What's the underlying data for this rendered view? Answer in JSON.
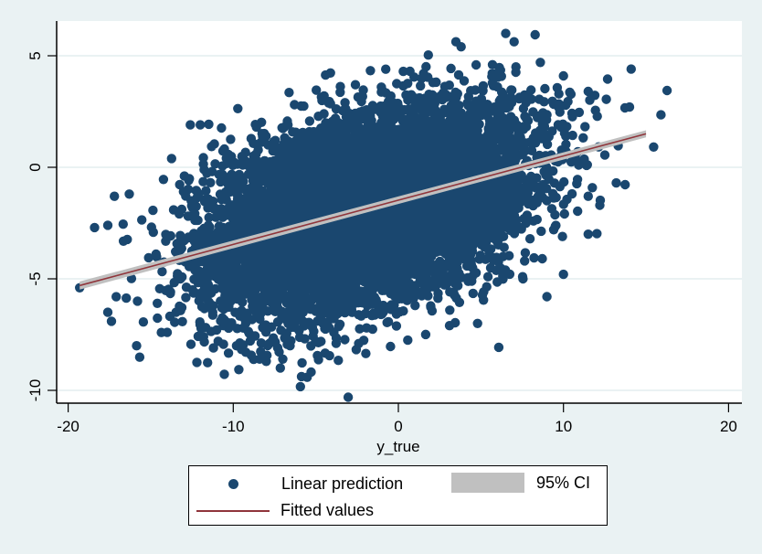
{
  "chart_data": {
    "type": "scatter",
    "title": "",
    "xlabel": "y_true",
    "ylabel": "",
    "xlim": [
      -20.8,
      20.8
    ],
    "ylim": [
      -10.6,
      6.5
    ],
    "x_ticks": [
      -20,
      -10,
      0,
      10,
      20
    ],
    "x_tick_labels": [
      "-20",
      "-10",
      "0",
      "10",
      "20"
    ],
    "y_ticks": [
      -10,
      -5,
      0,
      5
    ],
    "y_tick_labels": [
      "-10",
      "-5",
      "0",
      "5"
    ],
    "grid": {
      "horizontal": true,
      "vertical": false
    },
    "legend_position": "bottom",
    "series": [
      {
        "name": "Linear prediction",
        "type": "scatter",
        "color": "#1a476f",
        "description": "Dense elliptical cloud of ~thousands of points, positively correlated",
        "cloud": {
          "center_x": -2.0,
          "center_y": -2.0,
          "sd_x": 4.6,
          "sd_y": 2.0,
          "slope": 0.2,
          "n": 9000,
          "seed": 7
        },
        "outliers": [
          [
            -19.3,
            -5.4
          ],
          [
            -18.4,
            -2.7
          ],
          [
            -17.6,
            -2.6
          ],
          [
            -17.6,
            -6.5
          ],
          [
            -17.2,
            -1.3
          ],
          [
            -16.3,
            -1.2
          ],
          [
            -15.8,
            -6.0
          ],
          [
            -14.6,
            -6.1
          ],
          [
            -14.0,
            -7.4
          ],
          [
            -13.2,
            -5.0
          ],
          [
            -12.6,
            1.9
          ],
          [
            -12.0,
            1.9
          ],
          [
            -11.8,
            -7.6
          ],
          [
            -11.2,
            -8.1
          ],
          [
            -10.6,
            -7.1
          ],
          [
            -9.8,
            -8.0
          ],
          [
            -8.4,
            -8.6
          ],
          [
            -8.0,
            -8.7
          ],
          [
            -7.0,
            -8.6
          ],
          [
            -5.0,
            -7.8
          ],
          [
            -2.4,
            -7.9
          ],
          [
            3.1,
            -7.1
          ],
          [
            4.8,
            -7.0
          ],
          [
            3.8,
            5.4
          ],
          [
            6.5,
            6.0
          ],
          [
            -4.5,
            3.2
          ],
          [
            -2.6,
            3.7
          ],
          [
            0.3,
            4.3
          ],
          [
            2.1,
            3.8
          ],
          [
            5.7,
            4.6
          ],
          [
            8.6,
            4.7
          ],
          [
            10.0,
            4.1
          ],
          [
            11.5,
            3.4
          ],
          [
            14.1,
            4.4
          ],
          [
            14.0,
            2.7
          ],
          [
            12.2,
            -1.7
          ],
          [
            13.2,
            -0.7
          ],
          [
            10.0,
            -4.8
          ],
          [
            11.5,
            -3.0
          ],
          [
            9.0,
            -5.8
          ]
        ]
      },
      {
        "name": "Fitted values",
        "type": "line",
        "color": "#90353b",
        "x": [
          -19.3,
          15.0
        ],
        "y": [
          -5.3,
          1.5
        ]
      },
      {
        "name": "95% CI",
        "type": "area",
        "color": "#c0c0c0",
        "x": [
          -19.3,
          15.0
        ],
        "y_low": [
          -5.48,
          1.34
        ],
        "y_high": [
          -5.12,
          1.66
        ]
      }
    ]
  },
  "legend": {
    "items": [
      {
        "label": "Linear prediction",
        "symbol": "dot"
      },
      {
        "label": "95% CI",
        "symbol": "area"
      },
      {
        "label": "Fitted values",
        "symbol": "line"
      }
    ]
  },
  "colors": {
    "background": "#eaf2f3",
    "plot_bg": "#ffffff",
    "grid": "#eaf2f3",
    "markers": "#1a476f",
    "fit_line": "#90353b",
    "ci_band": "#c0c0c0"
  }
}
